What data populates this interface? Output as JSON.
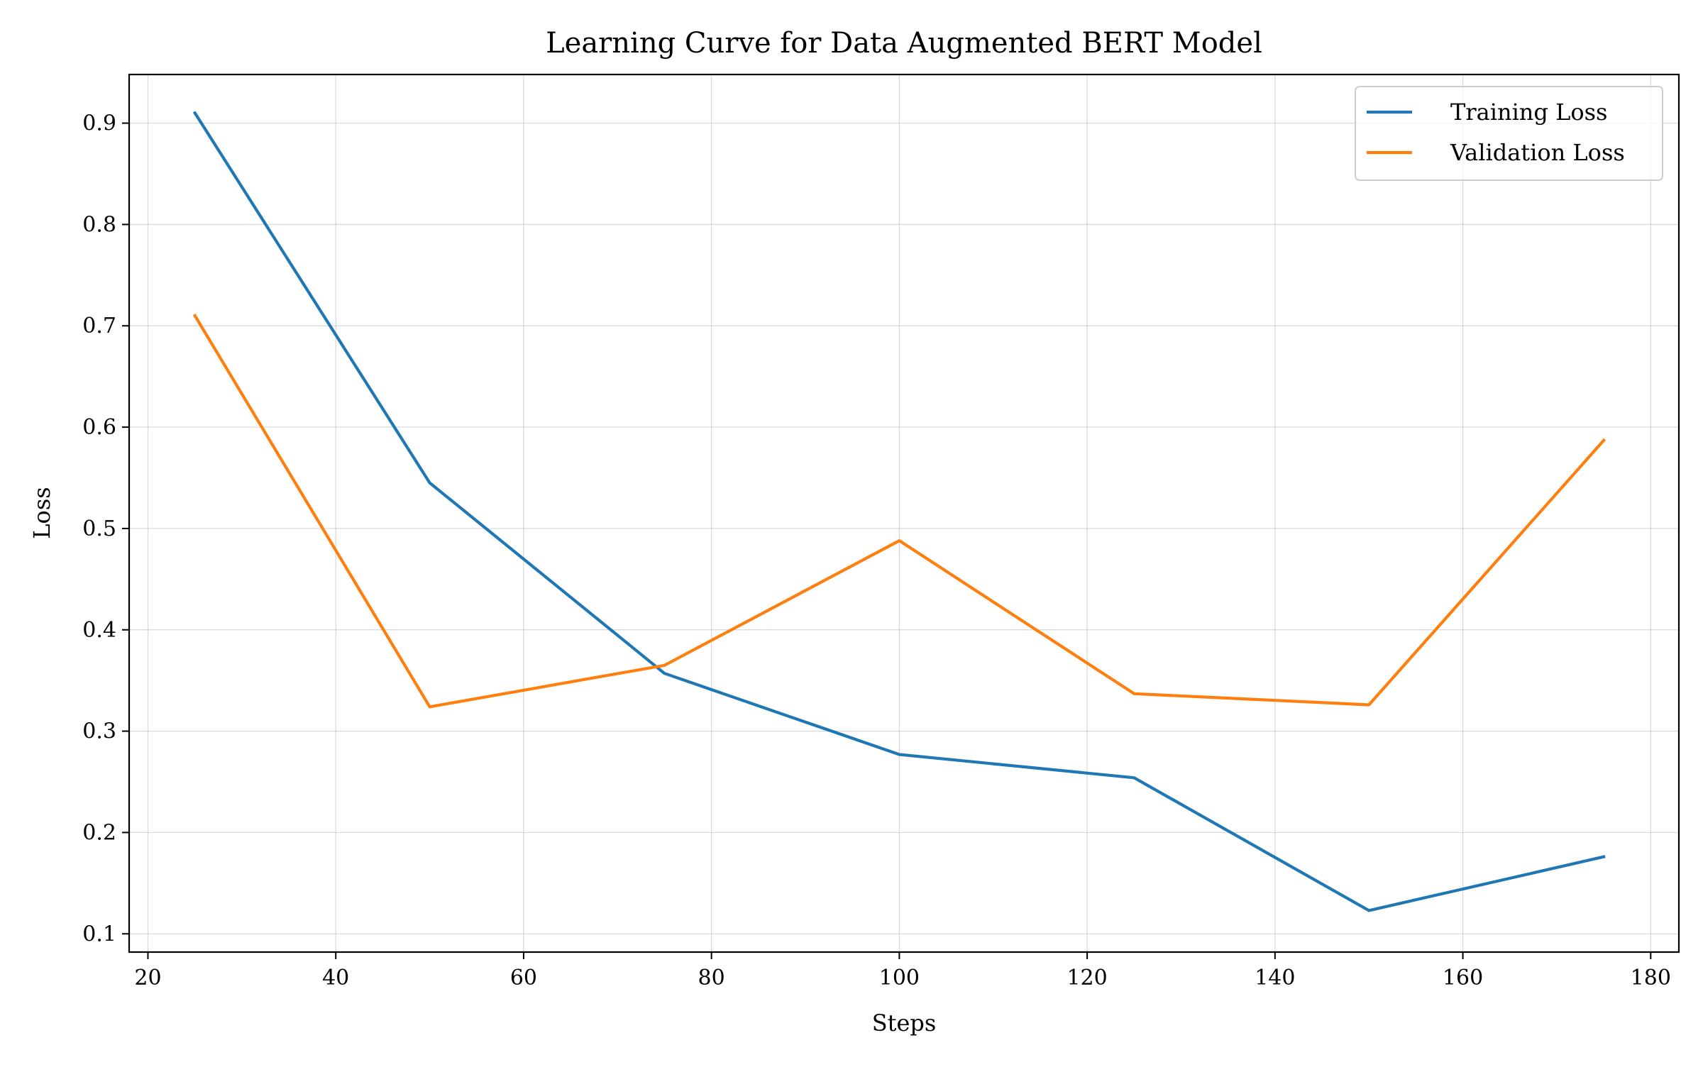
{
  "chart_data": {
    "type": "line",
    "title": "Learning Curve for Data Augmented BERT Model",
    "xlabel": "Steps",
    "ylabel": "Loss",
    "xlim": [
      18,
      183
    ],
    "ylim": [
      0.082,
      0.948
    ],
    "x_ticks": [
      20,
      40,
      60,
      80,
      100,
      120,
      140,
      160,
      180
    ],
    "x_tick_labels": [
      "20",
      "40",
      "60",
      "80",
      "100",
      "120",
      "140",
      "160",
      "180"
    ],
    "y_ticks": [
      0.1,
      0.2,
      0.3,
      0.4,
      0.5,
      0.6,
      0.7,
      0.8,
      0.9
    ],
    "y_tick_labels": [
      "0.1",
      "0.2",
      "0.3",
      "0.4",
      "0.5",
      "0.6",
      "0.7",
      "0.8",
      "0.9"
    ],
    "grid": true,
    "legend_position": "top-right",
    "x": [
      25,
      50,
      75,
      100,
      125,
      150,
      175
    ],
    "series": [
      {
        "name": "Training Loss",
        "color": "#1f77b4",
        "values": [
          0.91,
          0.545,
          0.357,
          0.277,
          0.254,
          0.123,
          0.176
        ]
      },
      {
        "name": "Validation Loss",
        "color": "#ff7f0e",
        "values": [
          0.71,
          0.324,
          0.365,
          0.488,
          0.337,
          0.326,
          0.587
        ]
      }
    ]
  }
}
